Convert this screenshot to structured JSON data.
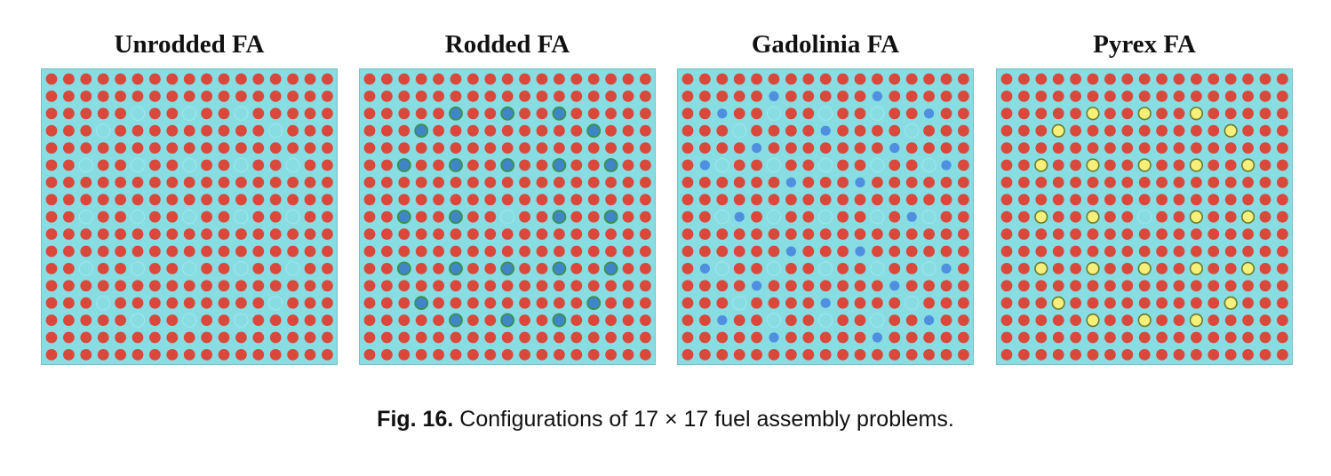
{
  "figure": {
    "caption_label": "Fig. 16.",
    "caption_text": "Configurations of 17 × 17 fuel assembly problems."
  },
  "colors": {
    "moderator": "#88dde2",
    "fuel_pin": "#d9483b",
    "guide_tube": "#88dde2",
    "control_rod": "#3f86c7",
    "control_rod_ring": "#3d8f4e",
    "gadolinia_pin": "#4f8fe0",
    "pyrex_rod": "#f6f07a",
    "pyrex_ring": "#6b7a2a"
  },
  "assembly": {
    "size": 17,
    "guide_tube_positions": [
      [
        2,
        5
      ],
      [
        2,
        8
      ],
      [
        2,
        11
      ],
      [
        3,
        3
      ],
      [
        3,
        13
      ],
      [
        5,
        2
      ],
      [
        5,
        5
      ],
      [
        5,
        8
      ],
      [
        5,
        11
      ],
      [
        5,
        14
      ],
      [
        8,
        2
      ],
      [
        8,
        5
      ],
      [
        8,
        8
      ],
      [
        8,
        11
      ],
      [
        8,
        14
      ],
      [
        11,
        2
      ],
      [
        11,
        5
      ],
      [
        11,
        8
      ],
      [
        11,
        11
      ],
      [
        11,
        14
      ],
      [
        13,
        3
      ],
      [
        13,
        13
      ],
      [
        14,
        5
      ],
      [
        14,
        8
      ],
      [
        14,
        11
      ]
    ]
  },
  "panels": [
    {
      "title": "Unrodded FA",
      "special_type": "none",
      "special_positions": []
    },
    {
      "title": "Rodded FA",
      "special_type": "control_rod",
      "special_positions": [
        [
          2,
          5
        ],
        [
          2,
          8
        ],
        [
          2,
          11
        ],
        [
          3,
          3
        ],
        [
          3,
          13
        ],
        [
          5,
          2
        ],
        [
          5,
          5
        ],
        [
          5,
          8
        ],
        [
          5,
          11
        ],
        [
          5,
          14
        ],
        [
          8,
          2
        ],
        [
          8,
          5
        ],
        [
          8,
          11
        ],
        [
          8,
          14
        ],
        [
          11,
          2
        ],
        [
          11,
          5
        ],
        [
          11,
          8
        ],
        [
          11,
          11
        ],
        [
          11,
          14
        ],
        [
          13,
          3
        ],
        [
          13,
          13
        ],
        [
          14,
          5
        ],
        [
          14,
          8
        ],
        [
          14,
          11
        ]
      ]
    },
    {
      "title": "Gadolinia FA",
      "special_type": "gadolinia",
      "special_positions": [
        [
          1,
          5
        ],
        [
          1,
          11
        ],
        [
          2,
          2
        ],
        [
          2,
          14
        ],
        [
          3,
          8
        ],
        [
          4,
          4
        ],
        [
          4,
          12
        ],
        [
          5,
          1
        ],
        [
          5,
          15
        ],
        [
          6,
          6
        ],
        [
          6,
          10
        ],
        [
          8,
          3
        ],
        [
          8,
          13
        ],
        [
          10,
          6
        ],
        [
          10,
          10
        ],
        [
          11,
          1
        ],
        [
          11,
          15
        ],
        [
          12,
          4
        ],
        [
          12,
          12
        ],
        [
          13,
          8
        ],
        [
          14,
          2
        ],
        [
          14,
          14
        ],
        [
          15,
          5
        ],
        [
          15,
          11
        ]
      ]
    },
    {
      "title": "Pyrex FA",
      "special_type": "pyrex",
      "special_positions": [
        [
          2,
          5
        ],
        [
          2,
          8
        ],
        [
          2,
          11
        ],
        [
          3,
          3
        ],
        [
          3,
          13
        ],
        [
          5,
          2
        ],
        [
          5,
          5
        ],
        [
          5,
          8
        ],
        [
          5,
          11
        ],
        [
          5,
          14
        ],
        [
          8,
          2
        ],
        [
          8,
          5
        ],
        [
          8,
          11
        ],
        [
          8,
          14
        ],
        [
          11,
          2
        ],
        [
          11,
          5
        ],
        [
          11,
          8
        ],
        [
          11,
          11
        ],
        [
          11,
          14
        ],
        [
          13,
          3
        ],
        [
          13,
          13
        ],
        [
          14,
          5
        ],
        [
          14,
          8
        ],
        [
          14,
          11
        ]
      ]
    }
  ]
}
